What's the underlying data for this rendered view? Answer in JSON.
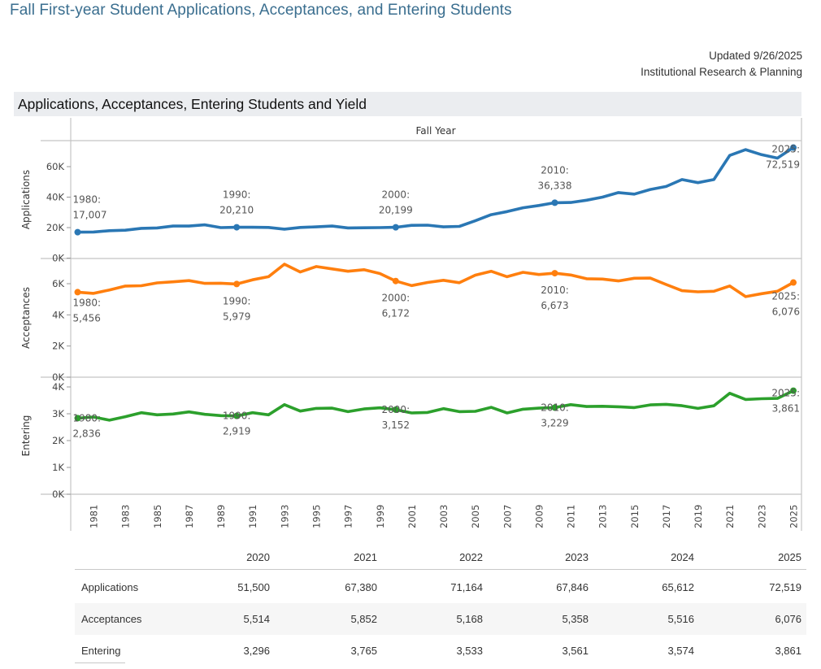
{
  "page": {
    "title": "Fall First-year Student Applications, Acceptances, and Entering Students",
    "updated": "Updated 9/26/2025",
    "source": "Institutional Research & Planning",
    "section_title": "Applications, Acceptances, Entering Students and Yield"
  },
  "chart_data": {
    "type": "line",
    "title": "Applications, Acceptances, Entering Students and Yield",
    "xlabel": "Fall Year",
    "x": [
      1980,
      1981,
      1982,
      1983,
      1984,
      1985,
      1986,
      1987,
      1988,
      1989,
      1990,
      1991,
      1992,
      1993,
      1994,
      1995,
      1996,
      1997,
      1998,
      1999,
      2000,
      2001,
      2002,
      2003,
      2004,
      2005,
      2006,
      2007,
      2008,
      2009,
      2010,
      2011,
      2012,
      2013,
      2014,
      2015,
      2016,
      2017,
      2018,
      2019,
      2020,
      2021,
      2022,
      2023,
      2024,
      2025
    ],
    "x_tick_labels": [
      "1981",
      "1983",
      "1985",
      "1987",
      "1989",
      "1991",
      "1993",
      "1995",
      "1997",
      "1999",
      "2001",
      "2003",
      "2005",
      "2007",
      "2009",
      "2011",
      "2013",
      "2015",
      "2017",
      "2019",
      "2021",
      "2023",
      "2025"
    ],
    "grid": false,
    "legend": "none",
    "panels": [
      {
        "name": "Applications",
        "ylabel": "Applications",
        "color": "#2a77b4",
        "ylim": [
          0,
          75000
        ],
        "y_ticks": [
          0,
          20000,
          40000,
          60000
        ],
        "y_tick_labels": [
          "0K",
          "20K",
          "40K",
          "60K"
        ],
        "values": [
          17007,
          17100,
          18000,
          18300,
          19500,
          19800,
          21000,
          21000,
          21800,
          20000,
          20210,
          20200,
          20100,
          19000,
          20100,
          20500,
          21000,
          19800,
          19900,
          20000,
          20199,
          21500,
          21600,
          20500,
          20800,
          24500,
          28500,
          30500,
          33000,
          34500,
          36338,
          36500,
          38000,
          40000,
          43000,
          42000,
          45000,
          47000,
          51500,
          49500,
          51500,
          67380,
          71164,
          67846,
          65612,
          72519
        ],
        "annotations": [
          {
            "year": 1980,
            "text1": "1980:",
            "text2": "17,007"
          },
          {
            "year": 1990,
            "text1": "1990:",
            "text2": "20,210"
          },
          {
            "year": 2000,
            "text1": "2000:",
            "text2": "20,199"
          },
          {
            "year": 2010,
            "text1": "2010:",
            "text2": "36,338"
          },
          {
            "year": 2025,
            "text1": "2025:",
            "text2": "72,519"
          }
        ]
      },
      {
        "name": "Acceptances",
        "ylabel": "Acceptances",
        "color": "#ff7f0e",
        "ylim": [
          0,
          7500
        ],
        "y_ticks": [
          0,
          2000,
          4000,
          6000
        ],
        "y_tick_labels": [
          "0K",
          "2K",
          "4K",
          "6K"
        ],
        "values": [
          5456,
          5380,
          5600,
          5850,
          5870,
          6050,
          6120,
          6200,
          6020,
          6030,
          5979,
          6250,
          6450,
          7250,
          6750,
          7100,
          6950,
          6800,
          6900,
          6650,
          6172,
          5880,
          6080,
          6220,
          6060,
          6550,
          6800,
          6450,
          6730,
          6590,
          6673,
          6560,
          6320,
          6300,
          6180,
          6350,
          6360,
          5950,
          5550,
          5480,
          5514,
          5852,
          5168,
          5358,
          5516,
          6076
        ],
        "annotations": [
          {
            "year": 1980,
            "text1": "1980:",
            "text2": "5,456"
          },
          {
            "year": 1990,
            "text1": "1990:",
            "text2": "5,979"
          },
          {
            "year": 2000,
            "text1": "2000:",
            "text2": "6,172"
          },
          {
            "year": 2010,
            "text1": "2010:",
            "text2": "6,673"
          },
          {
            "year": 2025,
            "text1": "2025:",
            "text2": "6,076"
          }
        ]
      },
      {
        "name": "Entering",
        "ylabel": "Entering",
        "color": "#2ca02c",
        "ylim": [
          0,
          4000
        ],
        "y_ticks": [
          0,
          1000,
          2000,
          3000,
          4000
        ],
        "y_tick_labels": [
          "0K",
          "1K",
          "2K",
          "3K",
          "4K"
        ],
        "values": [
          2836,
          2880,
          2760,
          2890,
          3040,
          2960,
          2990,
          3070,
          2980,
          2930,
          2919,
          3040,
          2960,
          3340,
          3100,
          3200,
          3210,
          3080,
          3180,
          3220,
          3152,
          3030,
          3050,
          3190,
          3080,
          3090,
          3240,
          3030,
          3170,
          3210,
          3229,
          3340,
          3270,
          3280,
          3260,
          3230,
          3330,
          3350,
          3300,
          3200,
          3296,
          3765,
          3533,
          3561,
          3574,
          3861
        ],
        "annotations": [
          {
            "year": 1980,
            "text1": "1980:",
            "text2": "2,836"
          },
          {
            "year": 1990,
            "text1": "1990:",
            "text2": "2,919"
          },
          {
            "year": 2000,
            "text1": "2000:",
            "text2": "3,152"
          },
          {
            "year": 2010,
            "text1": "2010:",
            "text2": "3,229"
          },
          {
            "year": 2025,
            "text1": "2025:",
            "text2": "3,861"
          }
        ]
      }
    ]
  },
  "table": {
    "columns": [
      "2020",
      "2021",
      "2022",
      "2023",
      "2024",
      "2025"
    ],
    "rows": [
      {
        "label": "Applications",
        "values": [
          "51,500",
          "67,380",
          "71,164",
          "67,846",
          "65,612",
          "72,519"
        ]
      },
      {
        "label": "Acceptances",
        "values": [
          "5,514",
          "5,852",
          "5,168",
          "5,358",
          "5,516",
          "6,076"
        ]
      },
      {
        "label": "Entering",
        "values": [
          "3,296",
          "3,765",
          "3,533",
          "3,561",
          "3,574",
          "3,861"
        ]
      }
    ]
  }
}
